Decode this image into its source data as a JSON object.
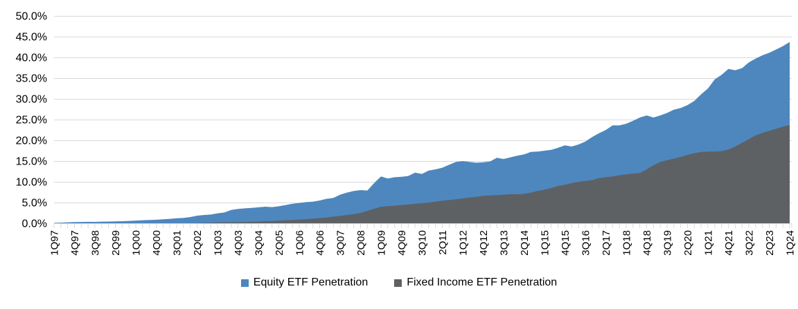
{
  "chart_data": {
    "type": "area",
    "overlap": true,
    "title": "",
    "xlabel": "",
    "ylabel": "",
    "unit": "percent",
    "ylim": [
      0,
      50
    ],
    "y_tick_step": 5,
    "y_tick_labels": [
      "0.0%",
      "5.0%",
      "10.0%",
      "15.0%",
      "20.0%",
      "25.0%",
      "30.0%",
      "35.0%",
      "40.0%",
      "45.0%",
      "50.0%"
    ],
    "grid": true,
    "legend_position": "bottom",
    "x_tick_step": 3,
    "x_tick_labels": [
      "1Q97",
      "4Q97",
      "3Q98",
      "2Q99",
      "1Q00",
      "4Q00",
      "3Q01",
      "2Q02",
      "1Q03",
      "4Q03",
      "3Q04",
      "2Q05",
      "1Q06",
      "4Q06",
      "3Q07",
      "2Q08",
      "1Q09",
      "4Q09",
      "3Q10",
      "2Q11",
      "1Q12",
      "4Q12",
      "3Q13",
      "2Q14",
      "1Q15",
      "4Q15",
      "3Q16",
      "2Q17",
      "1Q18",
      "4Q18",
      "3Q19",
      "2Q20",
      "1Q21",
      "4Q21",
      "3Q22",
      "2Q23",
      "1Q24"
    ],
    "series": [
      {
        "name": "Equity ETF Penetration",
        "color": "#4E87BE",
        "values": [
          0.1,
          0.15,
          0.22,
          0.3,
          0.32,
          0.35,
          0.33,
          0.4,
          0.42,
          0.46,
          0.5,
          0.56,
          0.65,
          0.72,
          0.8,
          0.85,
          0.95,
          1.06,
          1.2,
          1.3,
          1.5,
          1.83,
          2.0,
          2.1,
          2.4,
          2.6,
          3.2,
          3.45,
          3.6,
          3.7,
          3.85,
          4.0,
          3.9,
          4.1,
          4.4,
          4.7,
          4.9,
          5.1,
          5.2,
          5.5,
          5.9,
          6.1,
          6.9,
          7.4,
          7.8,
          8.0,
          7.9,
          9.7,
          11.3,
          10.8,
          11.1,
          11.2,
          11.4,
          12.2,
          11.9,
          12.7,
          13.0,
          13.4,
          14.1,
          14.8,
          15.0,
          14.8,
          14.6,
          14.7,
          14.9,
          15.8,
          15.5,
          15.9,
          16.3,
          16.6,
          17.2,
          17.3,
          17.5,
          17.7,
          18.2,
          18.8,
          18.5,
          19.0,
          19.7,
          20.8,
          21.7,
          22.5,
          23.6,
          23.6,
          24.0,
          24.7,
          25.5,
          26.0,
          25.5,
          26.0,
          26.6,
          27.4,
          27.8,
          28.5,
          29.5,
          31.1,
          32.5,
          34.7,
          35.8,
          37.2,
          36.9,
          37.4,
          38.8,
          39.7,
          40.5,
          41.1,
          41.9,
          42.7,
          43.7
        ]
      },
      {
        "name": "Fixed Income ETF Penetration",
        "color": "#5E6164",
        "values": [
          0,
          0,
          0,
          0,
          0,
          0,
          0,
          0,
          0,
          0,
          0,
          0,
          0,
          0,
          0,
          0,
          0,
          0,
          0,
          0,
          0,
          0.05,
          0.1,
          0.15,
          0.2,
          0.22,
          0.25,
          0.28,
          0.3,
          0.35,
          0.42,
          0.5,
          0.55,
          0.65,
          0.72,
          0.8,
          0.9,
          1.0,
          1.1,
          1.25,
          1.4,
          1.6,
          1.8,
          2.0,
          2.2,
          2.5,
          3.0,
          3.5,
          4.0,
          4.1,
          4.25,
          4.4,
          4.55,
          4.7,
          4.85,
          5.0,
          5.2,
          5.45,
          5.6,
          5.8,
          6.0,
          6.2,
          6.4,
          6.6,
          6.7,
          6.8,
          6.9,
          7.0,
          7.0,
          7.1,
          7.4,
          7.8,
          8.1,
          8.5,
          9.0,
          9.3,
          9.7,
          10.0,
          10.2,
          10.4,
          10.9,
          11.1,
          11.3,
          11.6,
          11.8,
          12.0,
          12.1,
          13.0,
          14.0,
          14.8,
          15.2,
          15.6,
          16.0,
          16.5,
          16.9,
          17.2,
          17.3,
          17.3,
          17.4,
          17.8,
          18.5,
          19.4,
          20.3,
          21.2,
          21.8,
          22.3,
          22.8,
          23.3,
          23.7
        ]
      }
    ]
  },
  "colors": {
    "gridline": "#D9D9D9",
    "axis_tick": "#D9D9D9",
    "text": "#000000",
    "background": "#FFFFFF"
  }
}
